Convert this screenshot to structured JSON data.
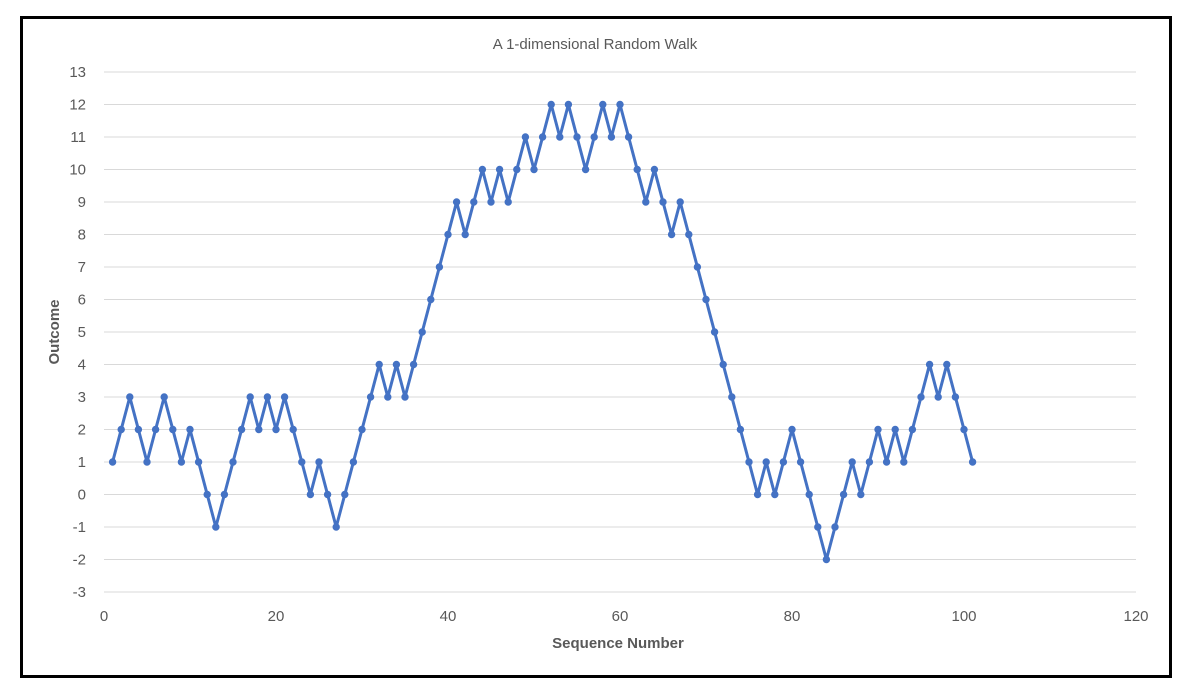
{
  "chart_data": {
    "type": "line",
    "title": "A 1-dimensional Random Walk",
    "xlabel": "Sequence Number",
    "ylabel": "Outcome",
    "xlim": [
      0,
      120
    ],
    "ylim": [
      -3,
      13
    ],
    "xticks": [
      "0",
      "20",
      "40",
      "60",
      "80",
      "100",
      "120"
    ],
    "yticks": [
      "13",
      "12",
      "11",
      "10",
      "9",
      "8",
      "7",
      "6",
      "5",
      "4",
      "3",
      "2",
      "1",
      "0",
      "-1",
      "-2",
      "-3"
    ],
    "grid": true,
    "line_color": "#4472c4",
    "series": [
      {
        "values": [
          1,
          2,
          3,
          2,
          1,
          2,
          3,
          2,
          1,
          2,
          1,
          0,
          -1,
          0,
          1,
          2,
          3,
          2,
          3,
          2,
          3,
          2,
          1,
          0,
          1,
          0,
          -1,
          0,
          1,
          2,
          3,
          4,
          3,
          4,
          3,
          4,
          5,
          6,
          7,
          8,
          9,
          8,
          9,
          10,
          9,
          10,
          9,
          10,
          11,
          10,
          11,
          12,
          11,
          12,
          11,
          10,
          11,
          12,
          11,
          12,
          11,
          10,
          9,
          10,
          9,
          8,
          9,
          8,
          7,
          6,
          5,
          4,
          3,
          2,
          1,
          0,
          1,
          0,
          1,
          2,
          1,
          0,
          -1,
          -2,
          -1,
          0,
          1,
          0,
          1,
          2,
          1,
          2,
          1,
          2,
          3,
          4,
          3,
          4,
          3,
          2,
          1
        ],
        "x_start": 1
      }
    ]
  }
}
